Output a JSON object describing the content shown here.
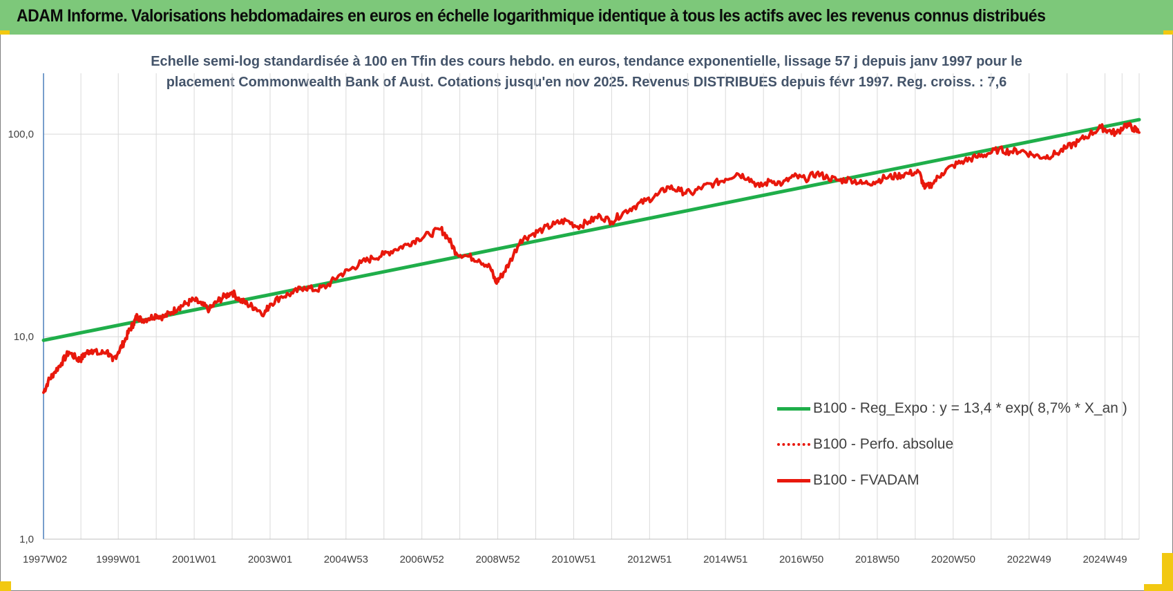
{
  "header": {
    "title": "ADAM Informe. Valorisations hebdomadaires en euros en échelle logarithmique identique à tous les actifs avec les revenus connus distribués"
  },
  "chart_data": {
    "type": "line",
    "title_line1": "Echelle semi-log standardisée à 100 en Tfin des cours hebdo. en euros, tendance exponentielle, lissage 57 j depuis janv 1997 pour le",
    "title_line2": "placement Commonwealth Bank of Aust. Cotations jusqu'en nov 2025. Revenus DISTRIBUES depuis févr 1997. Reg. croiss. : 7,6",
    "yscale": "log",
    "ylim": [
      1,
      200
    ],
    "y_ticks": [
      {
        "value": 1,
        "label": "1,0"
      },
      {
        "value": 10,
        "label": "10,0"
      },
      {
        "value": 100,
        "label": "100,0"
      }
    ],
    "x_tick_labels": [
      {
        "label": "1997W02",
        "year": 1997.03
      },
      {
        "label": "1999W01",
        "year": 1999.0
      },
      {
        "label": "2001W01",
        "year": 2001.0
      },
      {
        "label": "2003W01",
        "year": 2003.0
      },
      {
        "label": "2004W53",
        "year": 2005.0
      },
      {
        "label": "2006W52",
        "year": 2007.0
      },
      {
        "label": "2008W52",
        "year": 2009.0
      },
      {
        "label": "2010W51",
        "year": 2011.0
      },
      {
        "label": "2012W51",
        "year": 2013.0
      },
      {
        "label": "2014W51",
        "year": 2015.0
      },
      {
        "label": "2016W50",
        "year": 2017.0
      },
      {
        "label": "2018W50",
        "year": 2019.0
      },
      {
        "label": "2020W50",
        "year": 2021.0
      },
      {
        "label": "2022W49",
        "year": 2023.0
      },
      {
        "label": "2024W49",
        "year": 2025.0
      }
    ],
    "xlim": [
      1997.03,
      2025.9
    ],
    "grid": true,
    "legend_position": "bottom-right",
    "series": [
      {
        "name": "B100 - Reg_Expo : y = 13,4 * exp( 8,7% *  X_an )",
        "color": "#1fae4a",
        "style": "solid",
        "x": [
          1997.03,
          2025.9
        ],
        "y": [
          9.6,
          118
        ]
      },
      {
        "name": "B100 - Perfo. absolue",
        "color": "#e8180c",
        "style": "dotted",
        "x": [],
        "y": []
      },
      {
        "name": "B100 - FVADAM",
        "color": "#e8180c",
        "style": "solid",
        "x": [
          1997.03,
          1997.15,
          1997.3,
          1997.5,
          1997.7,
          1997.9,
          1998.0,
          1998.15,
          1998.3,
          1998.5,
          1998.7,
          1998.85,
          1999.0,
          1999.15,
          1999.3,
          1999.4,
          1999.5,
          1999.6,
          1999.8,
          2000.0,
          2000.2,
          2000.4,
          2000.6,
          2000.8,
          2001.0,
          2001.2,
          2001.4,
          2001.6,
          2001.8,
          2002.0,
          2002.2,
          2002.4,
          2002.6,
          2002.85,
          2003.0,
          2003.3,
          2003.6,
          2003.9,
          2004.2,
          2004.5,
          2004.8,
          2005.1,
          2005.4,
          2005.7,
          2006.0,
          2006.3,
          2006.6,
          2006.9,
          2007.2,
          2007.5,
          2007.7,
          2007.9,
          2008.2,
          2008.5,
          2008.8,
          2008.95,
          2009.1,
          2009.3,
          2009.6,
          2009.9,
          2010.2,
          2010.5,
          2010.8,
          2011.1,
          2011.4,
          2011.7,
          2012.0,
          2012.3,
          2012.6,
          2012.9,
          2013.2,
          2013.5,
          2013.8,
          2014.1,
          2014.4,
          2014.7,
          2015.0,
          2015.3,
          2015.6,
          2015.9,
          2016.2,
          2016.5,
          2016.8,
          2017.1,
          2017.4,
          2017.7,
          2018.0,
          2018.3,
          2018.6,
          2018.9,
          2019.2,
          2019.5,
          2019.8,
          2020.1,
          2020.25,
          2020.45,
          2020.7,
          2021.0,
          2021.3,
          2021.6,
          2021.9,
          2022.2,
          2022.5,
          2022.8,
          2023.1,
          2023.4,
          2023.7,
          2024.0,
          2024.3,
          2024.6,
          2024.9,
          2025.1,
          2025.3,
          2025.55,
          2025.75,
          2025.9
        ],
        "y": [
          5.3,
          6.0,
          6.6,
          7.4,
          8.4,
          7.8,
          7.7,
          8.3,
          8.6,
          8.2,
          8.5,
          7.6,
          8.4,
          9.4,
          10.8,
          11.6,
          12.7,
          12.1,
          12.3,
          12.8,
          12.5,
          13.2,
          14.0,
          14.6,
          15.2,
          14.4,
          13.6,
          14.9,
          15.8,
          16.6,
          15.2,
          14.5,
          13.9,
          13.0,
          14.5,
          15.8,
          16.4,
          17.6,
          17.0,
          17.8,
          20.0,
          21.4,
          23.2,
          24.4,
          25.5,
          27.0,
          28.5,
          30.5,
          32.0,
          34.0,
          30.5,
          26.0,
          25.0,
          24.0,
          22.0,
          18.5,
          20.0,
          23.0,
          30.0,
          32.0,
          34.0,
          36.0,
          37.5,
          35.0,
          37.0,
          39.5,
          37.0,
          41.0,
          44.0,
          47.0,
          50.0,
          55.0,
          52.5,
          51.0,
          55.0,
          57.0,
          60.0,
          64.0,
          61.0,
          55.0,
          59.0,
          57.0,
          62.0,
          60.0,
          64.0,
          61.0,
          59.0,
          60.0,
          57.0,
          58.0,
          61.0,
          62.0,
          64.0,
          65.0,
          54.0,
          57.0,
          64.0,
          70.0,
          74.0,
          77.0,
          80.0,
          84.0,
          82.0,
          83.0,
          79.0,
          77.0,
          80.0,
          86.0,
          92.0,
          100.0,
          108.0,
          104.0,
          101.0,
          112.0,
          107.0,
          102.0
        ]
      }
    ]
  }
}
